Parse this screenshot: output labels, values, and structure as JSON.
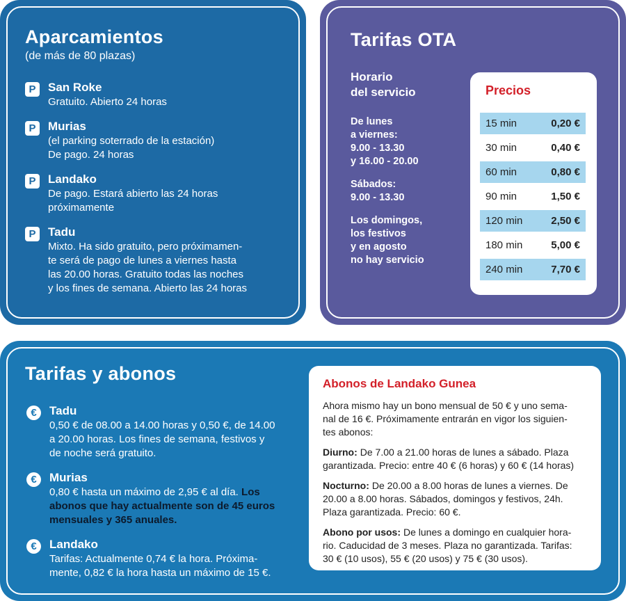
{
  "parking": {
    "title": "Aparcamientos",
    "subtitle": "(de más de 80 plazas)",
    "items": [
      {
        "icon": "P",
        "name": "San Roke",
        "lines": [
          "Gratuito. Abierto 24 horas"
        ]
      },
      {
        "icon": "P",
        "name": "Murias",
        "lines": [
          "(el parking soterrado de la estación)",
          "De pago. 24 horas"
        ]
      },
      {
        "icon": "P",
        "name": "Landako",
        "lines": [
          "De pago. Estará abierto las 24 horas",
          "próximamente"
        ]
      },
      {
        "icon": "P",
        "name": "Tadu",
        "lines": [
          "Mixto. Ha sido gratuito, pero próximamen-",
          "te será de pago de lunes a viernes hasta",
          "las 20.00 horas. Gratuito todas las noches",
          "y los fines de semana. Abierto las 24 horas"
        ]
      }
    ]
  },
  "ota": {
    "title": "Tarifas OTA",
    "schedule_heading": [
      "Horario",
      "del servicio"
    ],
    "schedule": [
      [
        "De lunes",
        "a viernes:",
        "9.00 - 13.30",
        "y 16.00 - 20.00"
      ],
      [
        "Sábados:",
        "9.00 - 13.30"
      ],
      [
        "Los domingos,",
        "los festivos",
        "y en agosto",
        "no hay servicio"
      ]
    ],
    "prices_title": "Precios",
    "prices": [
      [
        "15 min",
        "0,20 €"
      ],
      [
        "30 min",
        "0,40 €"
      ],
      [
        "60 min",
        "0,80 €"
      ],
      [
        "90 min",
        "1,50 €"
      ],
      [
        "120 min",
        "2,50 €"
      ],
      [
        "180 min",
        "5,00 €"
      ],
      [
        "240 min",
        "7,70 €"
      ]
    ]
  },
  "fees": {
    "title": "Tarifas y abonos",
    "items": [
      {
        "icon": "€",
        "name": "Tadu",
        "lines": [
          "0,50 € de 08.00 a 14.00 horas y 0,50 €, de 14.00",
          "a 20.00 horas. Los fines de semana, festivos y",
          "de noche será gratuito."
        ]
      },
      {
        "icon": "€",
        "name": "Murias",
        "lines": [
          "0,80 € hasta un máximo de 2,95 € al día."
        ],
        "note": [
          "Los",
          "abonos que hay actualmente son de 45 euros",
          "mensuales y 365 anuales."
        ]
      },
      {
        "icon": "€",
        "name": "Landako",
        "lines": [
          "Tarifas: Actualmente 0,74 € la hora. Próxima-",
          "mente, 0,82 € la hora hasta un máximo de 15 €."
        ]
      }
    ],
    "passes": {
      "title": "Abonos de Landako Gunea",
      "paragraphs": [
        {
          "lines": [
            "Ahora mismo hay un bono mensual de 50 € y uno sema-",
            "nal de 16 €. Próximamente entrarán en vigor los siguien-",
            "tes abonos:"
          ]
        },
        {
          "label": "Diurno:",
          "lines": [
            "De 7.00 a 21.00 horas de lunes a sábado. Plaza",
            "garantizada. Precio: entre 40 € (6 horas) y 60 € (14 horas)"
          ]
        },
        {
          "label": "Nocturno:",
          "lines": [
            "De 20.00 a 8.00 horas de lunes a viernes. De",
            "20.00 a 8.00 horas. Sábados, domingos y festivos, 24h.",
            "Plaza garantizada. Precio: 60 €."
          ]
        },
        {
          "label": "Abono por usos:",
          "lines": [
            "De lunes a domingo en cualquier hora-",
            "rio. Caducidad de 3 meses. Plaza no garantizada. Tarifas:",
            "30 € (10 usos), 55 € (20 usos) y 75 € (30 usos)."
          ]
        }
      ]
    }
  }
}
